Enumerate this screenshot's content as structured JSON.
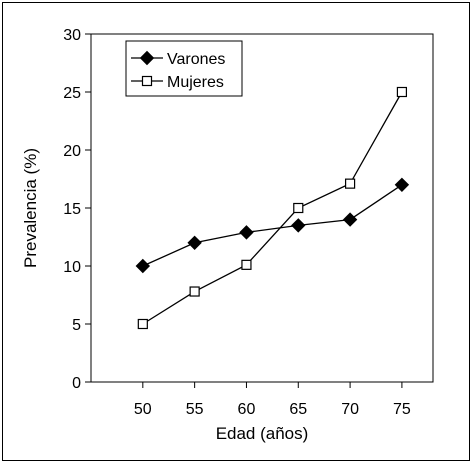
{
  "chart_data": {
    "type": "line",
    "x": [
      50,
      55,
      60,
      65,
      70,
      75
    ],
    "xlim": [
      45,
      78
    ],
    "ylim": [
      0,
      30
    ],
    "x_ticks": [
      50,
      55,
      60,
      65,
      70,
      75
    ],
    "y_ticks": [
      0,
      5,
      10,
      15,
      20,
      25,
      30
    ],
    "xlabel": "Edad (años)",
    "ylabel": "Prevalencia (%)",
    "legend_position": "top-left",
    "grid": false,
    "series": [
      {
        "name": "Varones",
        "marker": "filled-diamond",
        "color": "#000000",
        "values": [
          10,
          12,
          12.9,
          13.5,
          14,
          17
        ]
      },
      {
        "name": "Mujeres",
        "marker": "open-square",
        "color": "#000000",
        "values": [
          5,
          7.8,
          10.1,
          15,
          17.1,
          25
        ]
      }
    ]
  }
}
